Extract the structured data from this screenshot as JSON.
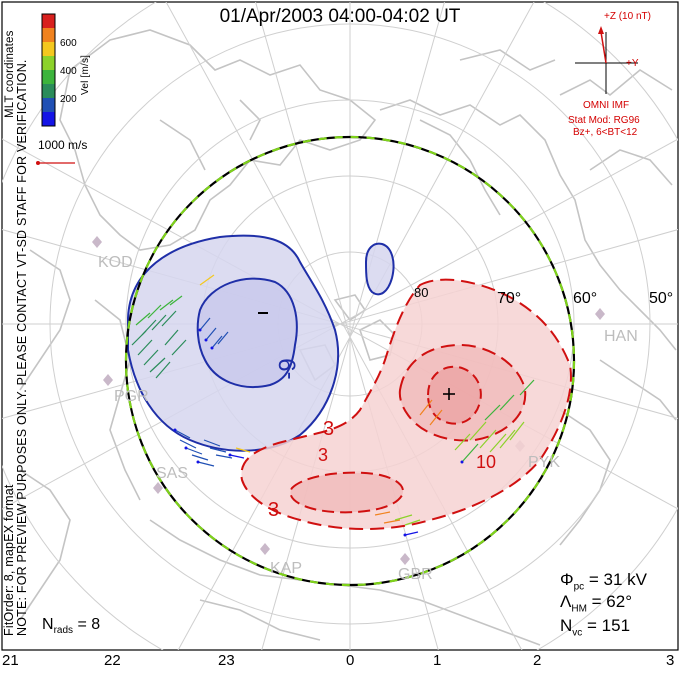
{
  "title": "01/Apr/2003 04:00-04:02 UT",
  "colorbar": {
    "unit_label": "Vel [m/s]",
    "ticks": [
      "600",
      "400",
      "200"
    ],
    "colors": [
      "#d8201e",
      "#f0821e",
      "#f4c81e",
      "#8cd22a",
      "#3cb43c",
      "#2a8c5a",
      "#2050b4",
      "#1414e6"
    ]
  },
  "mlt_coordinates_label": "MLT coordinates",
  "reference_vector": {
    "label": "1000 m/s"
  },
  "imf": {
    "z_label": "+Z (10 nT)",
    "y_label": "+Y",
    "source": "OMNI IMF",
    "stat_mod": "Stat Mod: RG96",
    "condition": "Bz+, 6<BT<12"
  },
  "latitude_labels": [
    "80",
    "70°",
    "60°",
    "50°"
  ],
  "potential_labels": {
    "min": "−",
    "max": "+",
    "neg_contour": "-9",
    "pos_contour_a": "3",
    "pos_contour_b": "3",
    "pos_contour_c": "10",
    "pos_contour_d": "3"
  },
  "stations": [
    "KOD",
    "PGR",
    "SAS",
    "KAP",
    "GBR",
    "HAN",
    "PYK"
  ],
  "fit_order": "FitOrder: 8, mapEX format",
  "note": "NOTE: FOR PREVIEW PURPOSES ONLY. PLEASE CONTACT VT-SD STAFF FOR VERIFICATION.",
  "stats": {
    "nrads_symbol": "N",
    "nrads_sub": "rads",
    "nrads_value": "= 8",
    "phi_symbol": "Φ",
    "phi_sub": "pc",
    "phi_value": "= 31 kV",
    "lambda_symbol": "Λ",
    "lambda_sub": "HM",
    "lambda_value": "= 62°",
    "nvc_symbol": "N",
    "nvc_sub": "vc",
    "nvc_value": "= 151"
  },
  "mlt_axis": [
    "21",
    "22",
    "23",
    "0",
    "1",
    "2",
    "3"
  ]
}
